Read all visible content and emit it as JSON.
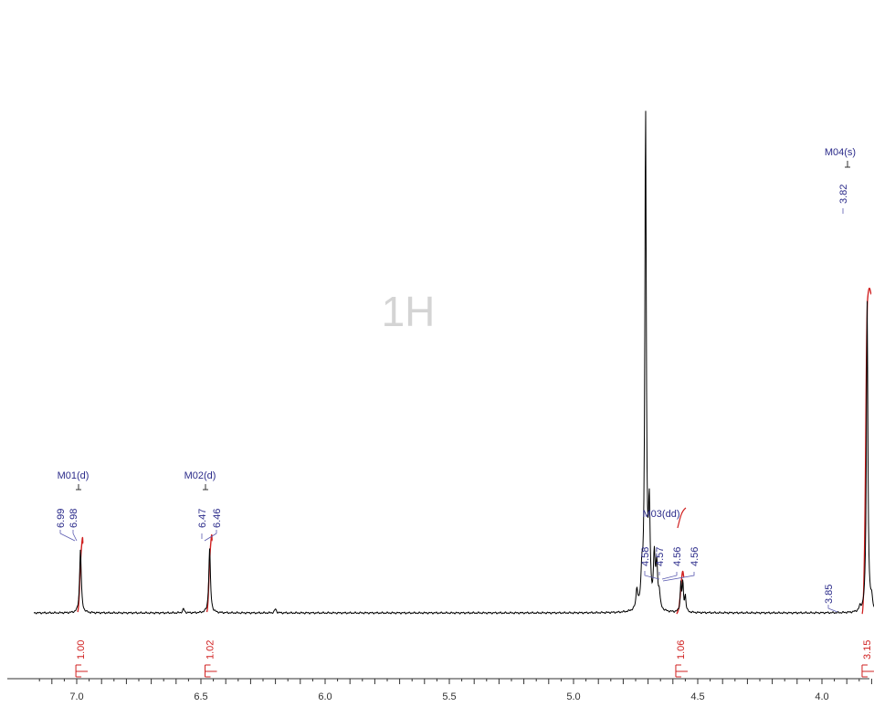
{
  "chart_data": {
    "type": "line",
    "title": "1H",
    "xlabel": "",
    "ylabel": "",
    "x_reversed": true,
    "xlim": [
      7.17,
      3.72
    ],
    "x_ticks": [
      "7.0",
      "6.5",
      "6.0",
      "5.5",
      "5.0",
      "4.5",
      "4.0"
    ],
    "tick_values": [
      7.0,
      6.5,
      6.0,
      5.5,
      5.0,
      4.5,
      4.0
    ],
    "grid": false,
    "colors": {
      "spectrum": "#000000",
      "integral": "#d02020",
      "annotation": "#2b2b8a",
      "watermark": "#d4d4d4"
    },
    "peaks": [
      {
        "ppm": 6.985,
        "height": 0.16,
        "width": 0.004
      },
      {
        "ppm": 6.465,
        "height": 0.16,
        "width": 0.004
      },
      {
        "ppm": 4.71,
        "height": 1.25,
        "width": 0.0035
      },
      {
        "ppm": 4.695,
        "height": 0.24,
        "width": 0.004
      },
      {
        "ppm": 4.725,
        "height": 0.08,
        "width": 0.004
      },
      {
        "ppm": 4.675,
        "height": 0.13,
        "width": 0.004
      },
      {
        "ppm": 4.665,
        "height": 0.11,
        "width": 0.004
      },
      {
        "ppm": 4.745,
        "height": 0.05,
        "width": 0.004
      },
      {
        "ppm": 4.655,
        "height": 0.04,
        "width": 0.004
      },
      {
        "ppm": 4.568,
        "height": 0.07,
        "width": 0.003
      },
      {
        "ppm": 4.56,
        "height": 0.07,
        "width": 0.003
      },
      {
        "ppm": 4.55,
        "height": 0.04,
        "width": 0.003
      },
      {
        "ppm": 3.818,
        "height": 0.78,
        "width": 0.0035
      },
      {
        "ppm": 3.847,
        "height": 0.01,
        "width": 0.004
      },
      {
        "ppm": 3.8,
        "height": 0.03,
        "width": 0.004
      },
      {
        "ppm": 6.57,
        "height": 0.01,
        "width": 0.004
      },
      {
        "ppm": 6.2,
        "height": 0.01,
        "width": 0.004
      }
    ],
    "multiplets": [
      {
        "label": "M01(d)",
        "ppm": 6.985,
        "shifts": [
          "6.99",
          "6.98"
        ]
      },
      {
        "label": "M02(d)",
        "ppm": 6.465,
        "shifts": [
          "6.47",
          "6.46"
        ]
      },
      {
        "label": "M03(dd)",
        "ppm": 4.57,
        "shifts": [
          "4.58",
          "4.57",
          "4.56",
          "4.56"
        ]
      },
      {
        "label": "M04(s)",
        "ppm": 3.82,
        "shifts": [
          "3.82",
          "3.85"
        ]
      }
    ],
    "integrals": [
      {
        "value": "1.00",
        "ppm": 6.985
      },
      {
        "value": "1.02",
        "ppm": 6.465
      },
      {
        "value": "1.06",
        "ppm": 4.57
      },
      {
        "value": "3.15",
        "ppm": 3.82
      }
    ]
  }
}
